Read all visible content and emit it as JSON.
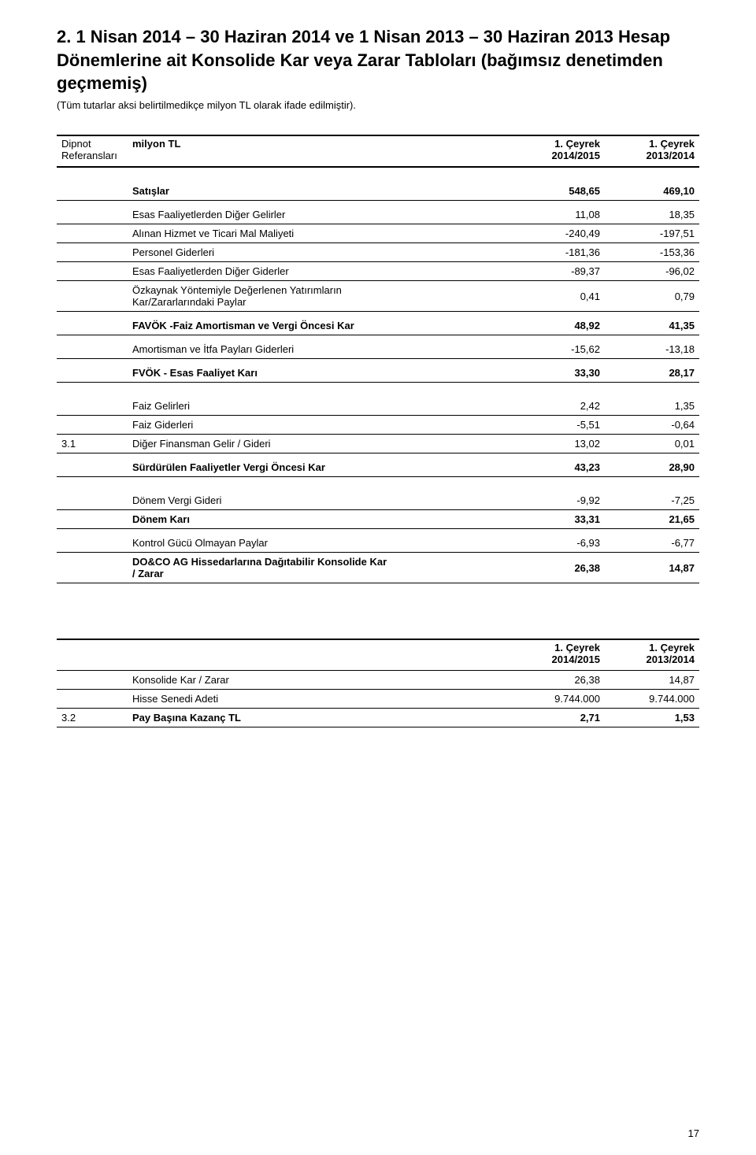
{
  "title": "2. 1 Nisan 2014 – 30 Haziran 2014 ve 1 Nisan 2013 – 30 Haziran 2013 Hesap Dönemlerine ait Konsolide Kar veya Zarar Tabloları (bağımsız denetimden geçmemiş)",
  "subtitle": "(Tüm tutarlar aksi belirtilmedikçe milyon TL olarak ifade edilmiştir).",
  "header": {
    "dipnot_line1": "Dipnot",
    "dipnot_line2": "Referansları",
    "unit": "milyon TL",
    "col1_line1": "1. Çeyrek",
    "col1_line2": "2014/2015",
    "col2_line1": "1. Çeyrek",
    "col2_line2": "2013/2014"
  },
  "rows": {
    "sales": {
      "label": "Satışlar",
      "v1": "548,65",
      "v2": "469,10"
    },
    "other_income": {
      "label": "Esas Faaliyetlerden Diğer Gelirler",
      "v1": "11,08",
      "v2": "18,35"
    },
    "material_cost": {
      "label": "Alınan Hizmet ve Ticari Mal Maliyeti",
      "v1": "-240,49",
      "v2": "-197,51"
    },
    "personnel": {
      "label": "Personel Giderleri",
      "v1": "-181,36",
      "v2": "-153,36"
    },
    "other_expense": {
      "label": "Esas Faaliyetlerden Diğer Giderler",
      "v1": "-89,37",
      "v2": "-96,02"
    },
    "equity_method_l1": {
      "label": "Özkaynak Yöntemiyle Değerlenen Yatırımların"
    },
    "equity_method_l2": {
      "label": "Kar/Zararlarındaki Paylar",
      "v1": "0,41",
      "v2": "0,79"
    },
    "favok": {
      "label": "FAVÖK -Faiz Amortisman ve Vergi Öncesi Kar",
      "v1": "48,92",
      "v2": "41,35"
    },
    "dep_amort": {
      "label": "Amortisman ve İtfa Payları Giderleri",
      "v1": "-15,62",
      "v2": "-13,18"
    },
    "fvok": {
      "label": "FVÖK - Esas Faaliyet Karı",
      "v1": "33,30",
      "v2": "28,17"
    },
    "fin_income": {
      "label": "Faiz Gelirleri",
      "v1": "2,42",
      "v2": "1,35"
    },
    "fin_expense": {
      "label": "Faiz Giderleri",
      "v1": "-5,51",
      "v2": "-0,64"
    },
    "other_fin": {
      "ref": "3.1",
      "label": "Diğer Finansman Gelir / Gideri",
      "v1": "13,02",
      "v2": "0,01"
    },
    "pbt": {
      "label": "Sürdürülen Faaliyetler Vergi Öncesi Kar",
      "v1": "43,23",
      "v2": "28,90"
    },
    "tax": {
      "label": "Dönem Vergi Gideri",
      "v1": "-9,92",
      "v2": "-7,25"
    },
    "net": {
      "label": "Dönem Karı",
      "v1": "33,31",
      "v2": "21,65"
    },
    "nci": {
      "label": "Kontrol Gücü Olmayan Paylar",
      "v1": "-6,93",
      "v2": "-6,77"
    },
    "attr_l1": {
      "label": "DO&CO AG Hissedarlarına Dağıtabilir Konsolide Kar"
    },
    "attr_l2": {
      "label": "/ Zarar",
      "v1": "26,38",
      "v2": "14,87"
    }
  },
  "table2": {
    "col1_line1": "1. Çeyrek",
    "col1_line2": "2014/2015",
    "col2_line1": "1. Çeyrek",
    "col2_line2": "2013/2014",
    "kons": {
      "label": "Konsolide Kar / Zarar",
      "v1": "26,38",
      "v2": "14,87"
    },
    "shares": {
      "label": "Hisse Senedi Adeti",
      "v1": "9.744.000",
      "v2": "9.744.000"
    },
    "eps": {
      "ref": "3.2",
      "label": "Pay Başına Kazanç TL",
      "v1": "2,71",
      "v2": "1,53"
    }
  },
  "pageNumber": "17"
}
